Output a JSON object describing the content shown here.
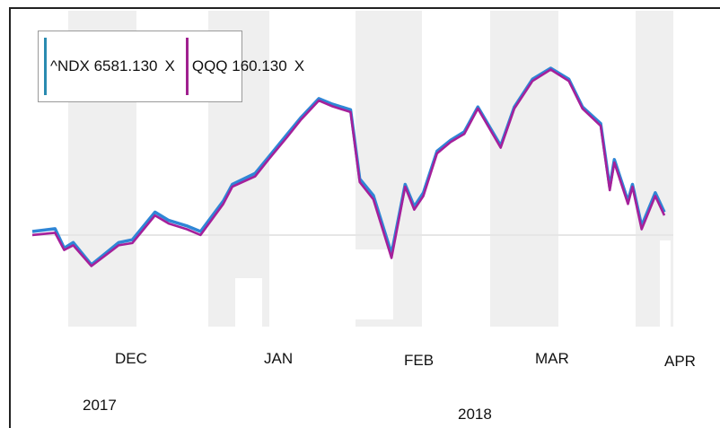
{
  "legend": [
    {
      "label": "^NDX 6581.130",
      "close": "X",
      "color": "#2a8bb0"
    },
    {
      "label": "QQQ 160.130",
      "close": "X",
      "color": "#a0208f"
    }
  ],
  "x_labels": {
    "months": [
      "DEC",
      "JAN",
      "FEB",
      "MAR",
      "APR"
    ],
    "years": [
      "2017",
      "2018"
    ]
  },
  "colors": {
    "ndx": "#2f86d6",
    "qqq": "#a5209a",
    "band": "#efefef"
  },
  "chart_data": {
    "type": "line",
    "x": [
      "2017-11-15",
      "2017-11-20",
      "2017-11-22",
      "2017-11-24",
      "2017-11-28",
      "2017-12-01",
      "2017-12-04",
      "2017-12-07",
      "2017-12-12",
      "2017-12-15",
      "2017-12-19",
      "2017-12-22",
      "2017-12-27",
      "2017-12-29",
      "2018-01-03",
      "2018-01-06",
      "2018-01-10",
      "2018-01-13",
      "2018-01-17",
      "2018-01-20",
      "2018-01-24",
      "2018-01-26",
      "2018-01-29",
      "2018-02-02",
      "2018-02-05",
      "2018-02-07",
      "2018-02-09",
      "2018-02-12",
      "2018-02-15",
      "2018-02-18",
      "2018-02-21",
      "2018-02-26",
      "2018-03-01",
      "2018-03-05",
      "2018-03-09",
      "2018-03-13",
      "2018-03-16",
      "2018-03-20",
      "2018-03-22",
      "2018-03-23",
      "2018-03-26",
      "2018-03-27",
      "2018-03-29",
      "2018-04-01",
      "2018-04-03"
    ],
    "series": [
      {
        "name": "^NDX",
        "values": [
          6350,
          6360,
          6290,
          6310,
          6230,
          6270,
          6310,
          6320,
          6420,
          6390,
          6370,
          6350,
          6460,
          6520,
          6560,
          6620,
          6700,
          6760,
          6830,
          6810,
          6790,
          6540,
          6480,
          6270,
          6520,
          6440,
          6490,
          6640,
          6680,
          6710,
          6800,
          6660,
          6800,
          6900,
          6940,
          6900,
          6800,
          6740,
          6510,
          6610,
          6460,
          6520,
          6370,
          6490,
          6420
        ]
      },
      {
        "name": "QQQ",
        "values": [
          155.1,
          155.3,
          153.8,
          154.2,
          152.4,
          153.3,
          154.2,
          154.4,
          156.8,
          156.1,
          155.6,
          155.1,
          157.8,
          159.3,
          160.2,
          161.7,
          163.6,
          165.1,
          166.8,
          166.3,
          165.8,
          159.7,
          158.2,
          153.1,
          159.3,
          157.3,
          158.5,
          162.2,
          163.2,
          163.9,
          166.1,
          162.7,
          166.1,
          168.5,
          169.5,
          168.5,
          166.1,
          164.6,
          159.0,
          161.4,
          157.8,
          159.3,
          155.6,
          158.5,
          156.8
        ]
      }
    ],
    "xlabel": "",
    "ylabel": "",
    "grid": false,
    "legend_position": "top-left"
  }
}
